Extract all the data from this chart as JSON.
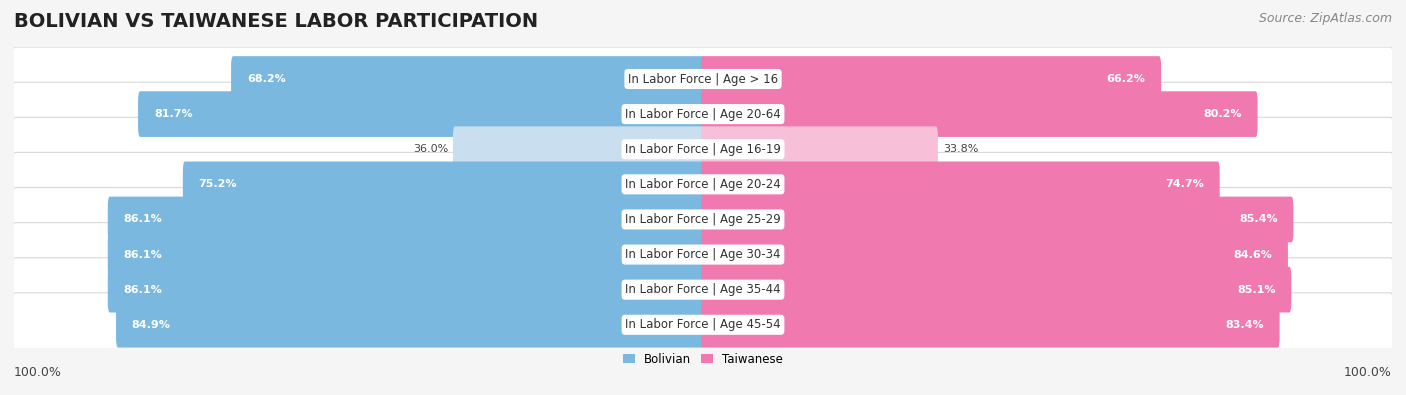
{
  "title": "BOLIVIAN VS TAIWANESE LABOR PARTICIPATION",
  "source": "Source: ZipAtlas.com",
  "categories": [
    "In Labor Force | Age > 16",
    "In Labor Force | Age 20-64",
    "In Labor Force | Age 16-19",
    "In Labor Force | Age 20-24",
    "In Labor Force | Age 25-29",
    "In Labor Force | Age 30-34",
    "In Labor Force | Age 35-44",
    "In Labor Force | Age 45-54"
  ],
  "bolivian_values": [
    68.2,
    81.7,
    36.0,
    75.2,
    86.1,
    86.1,
    86.1,
    84.9
  ],
  "taiwanese_values": [
    66.2,
    80.2,
    33.8,
    74.7,
    85.4,
    84.6,
    85.1,
    83.4
  ],
  "bolivian_color": "#7ab8e0",
  "taiwanese_color": "#f07ab0",
  "bolivian_color_light": "#c9dff0",
  "taiwanese_color_light": "#f7c0d8",
  "row_bg_color": "#ffffff",
  "row_border_color": "#d8d8d8",
  "outer_bg_color": "#f0f0f0",
  "background_color": "#f5f5f5",
  "max_value": 100.0,
  "legend_bolivian": "Bolivian",
  "legend_taiwanese": "Taiwanese",
  "title_fontsize": 14,
  "source_fontsize": 9,
  "label_fontsize": 8.5,
  "value_fontsize": 8.0,
  "footer_fontsize": 9
}
